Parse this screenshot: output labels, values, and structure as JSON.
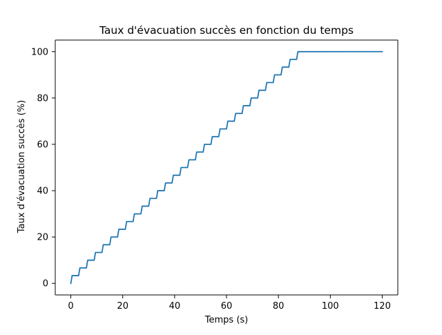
{
  "chart_data": {
    "type": "line",
    "title": "Taux d'évacuation succès en fonction du temps",
    "xlabel": "Temps (s)",
    "ylabel": "Taux d'évacuation succès (%)",
    "xlim": [
      -6,
      126
    ],
    "ylim": [
      -5,
      105
    ],
    "xticks": [
      0,
      20,
      40,
      60,
      80,
      100,
      120
    ],
    "yticks": [
      0,
      20,
      40,
      60,
      80,
      100
    ],
    "grid": false,
    "legend": "none",
    "series_color": "#1f77b4",
    "series": [
      {
        "step_model": {
          "start_x": 0,
          "start_y": 0,
          "step_rise": 3.333,
          "step_ramp": 0.5,
          "plateau_length": 2.5,
          "step_count": 30,
          "end_x": 120,
          "end_y": 100
        }
      }
    ]
  }
}
